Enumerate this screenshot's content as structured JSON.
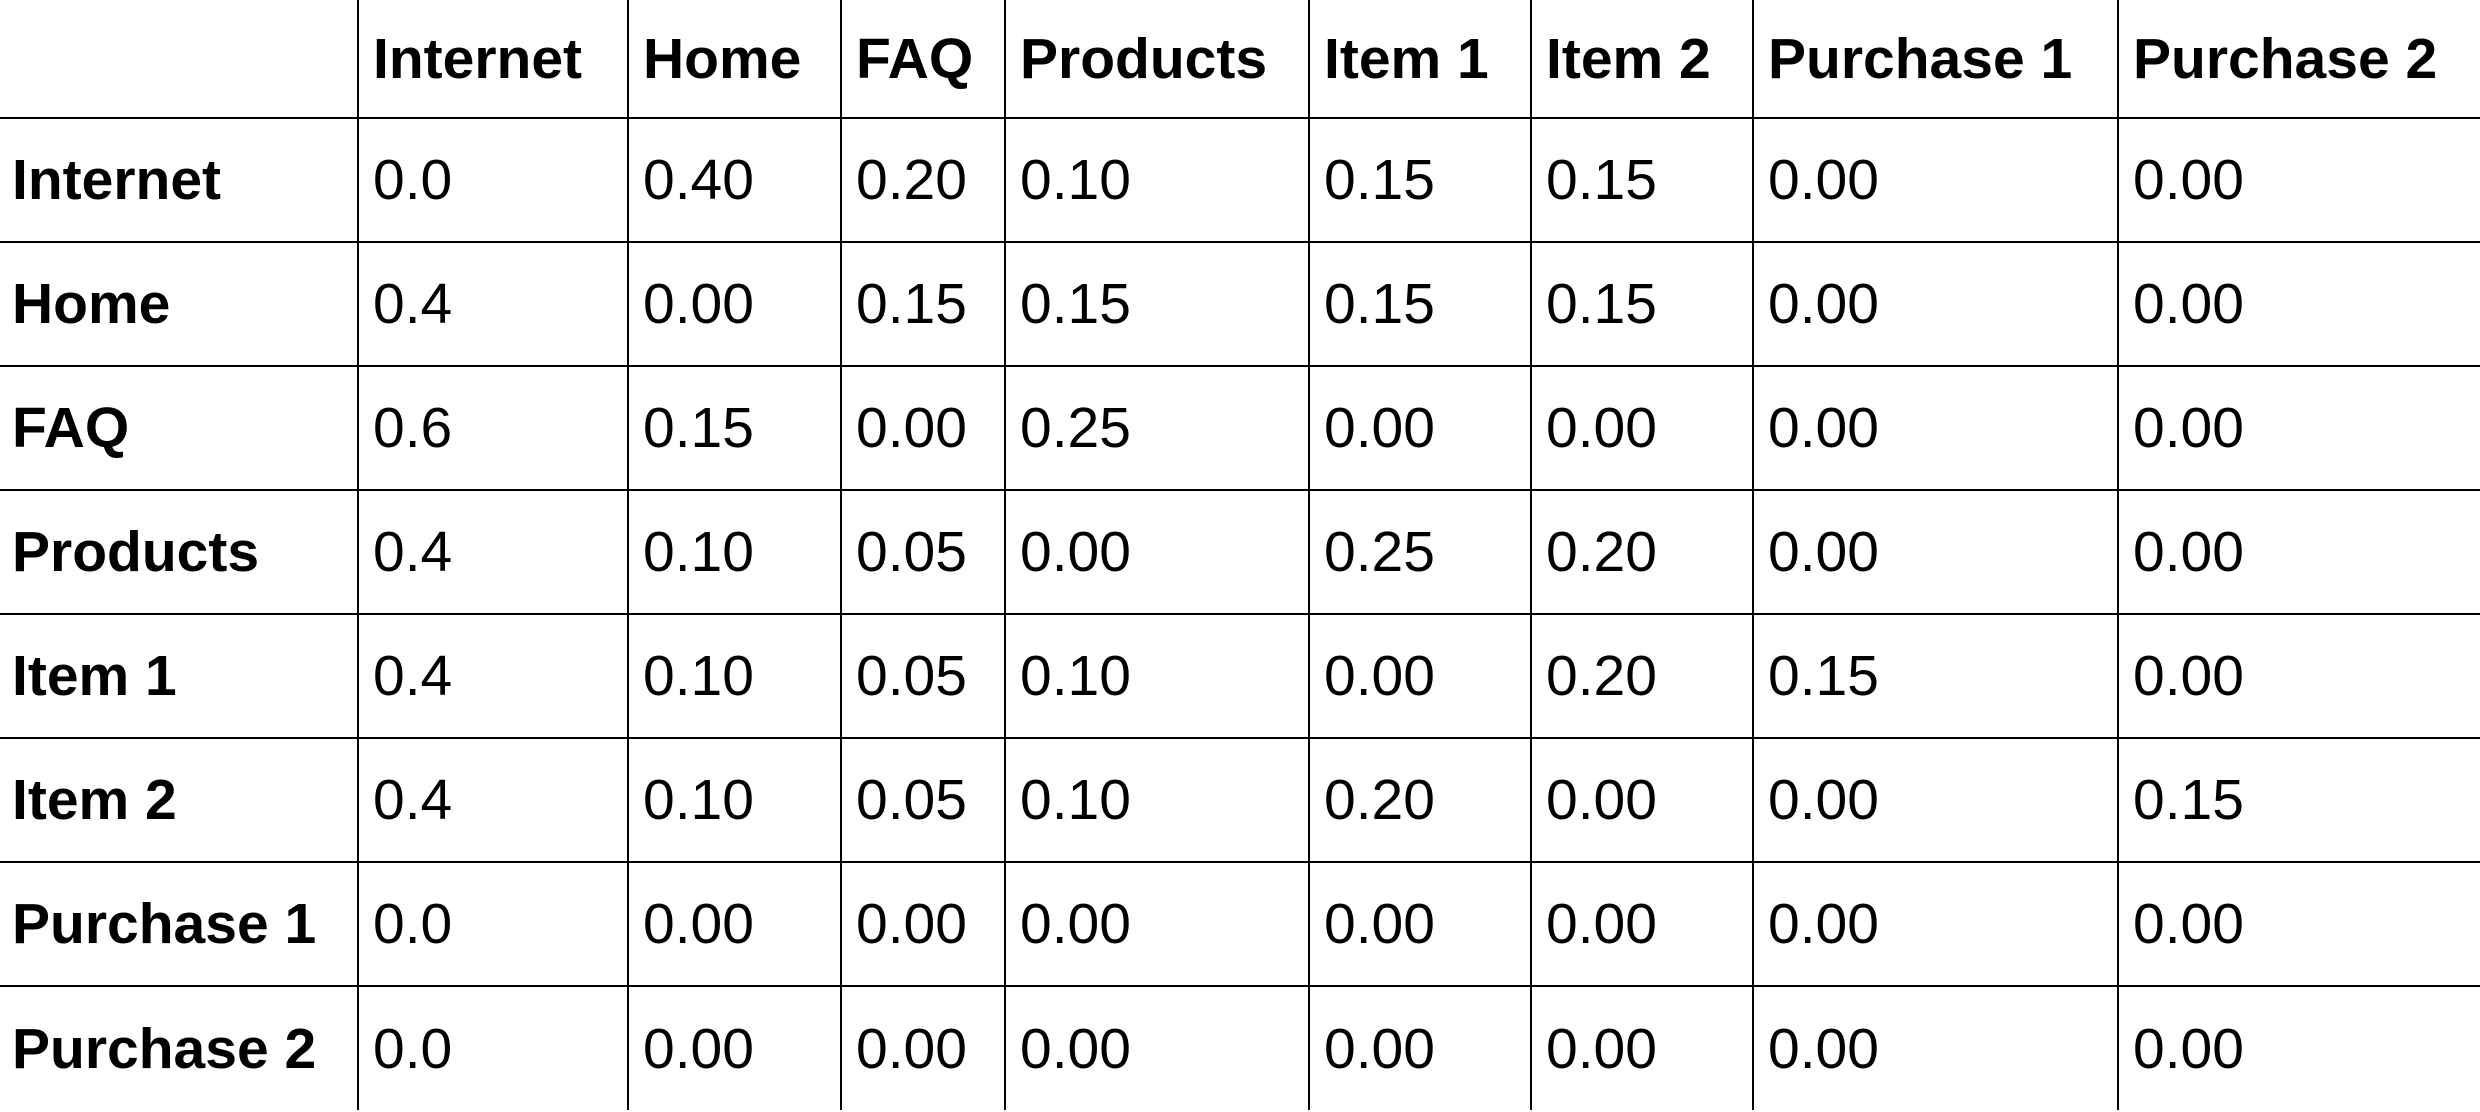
{
  "table": {
    "columns": [
      "",
      "Internet",
      "Home",
      "FAQ",
      "Products",
      "Item 1",
      "Item 2",
      "Purchase 1",
      "Purchase 2"
    ],
    "rows": [
      {
        "label": "Internet",
        "values": [
          "0.0",
          "0.40",
          "0.20",
          "0.10",
          "0.15",
          "0.15",
          "0.00",
          "0.00"
        ]
      },
      {
        "label": "Home",
        "values": [
          "0.4",
          "0.00",
          "0.15",
          "0.15",
          "0.15",
          "0.15",
          "0.00",
          "0.00"
        ]
      },
      {
        "label": "FAQ",
        "values": [
          "0.6",
          "0.15",
          "0.00",
          "0.25",
          "0.00",
          "0.00",
          "0.00",
          "0.00"
        ]
      },
      {
        "label": "Products",
        "values": [
          "0.4",
          "0.10",
          "0.05",
          "0.00",
          "0.25",
          "0.20",
          "0.00",
          "0.00"
        ]
      },
      {
        "label": "Item 1",
        "values": [
          "0.4",
          "0.10",
          "0.05",
          "0.10",
          "0.00",
          "0.20",
          "0.15",
          "0.00"
        ]
      },
      {
        "label": "Item 2",
        "values": [
          "0.4",
          "0.10",
          "0.05",
          "0.10",
          "0.20",
          "0.00",
          "0.00",
          "0.15"
        ]
      },
      {
        "label": "Purchase 1",
        "values": [
          "0.0",
          "0.00",
          "0.00",
          "0.00",
          "0.00",
          "0.00",
          "0.00",
          "0.00"
        ]
      },
      {
        "label": "Purchase 2",
        "values": [
          "0.0",
          "0.00",
          "0.00",
          "0.00",
          "0.00",
          "0.00",
          "0.00",
          "0.00"
        ]
      }
    ]
  }
}
